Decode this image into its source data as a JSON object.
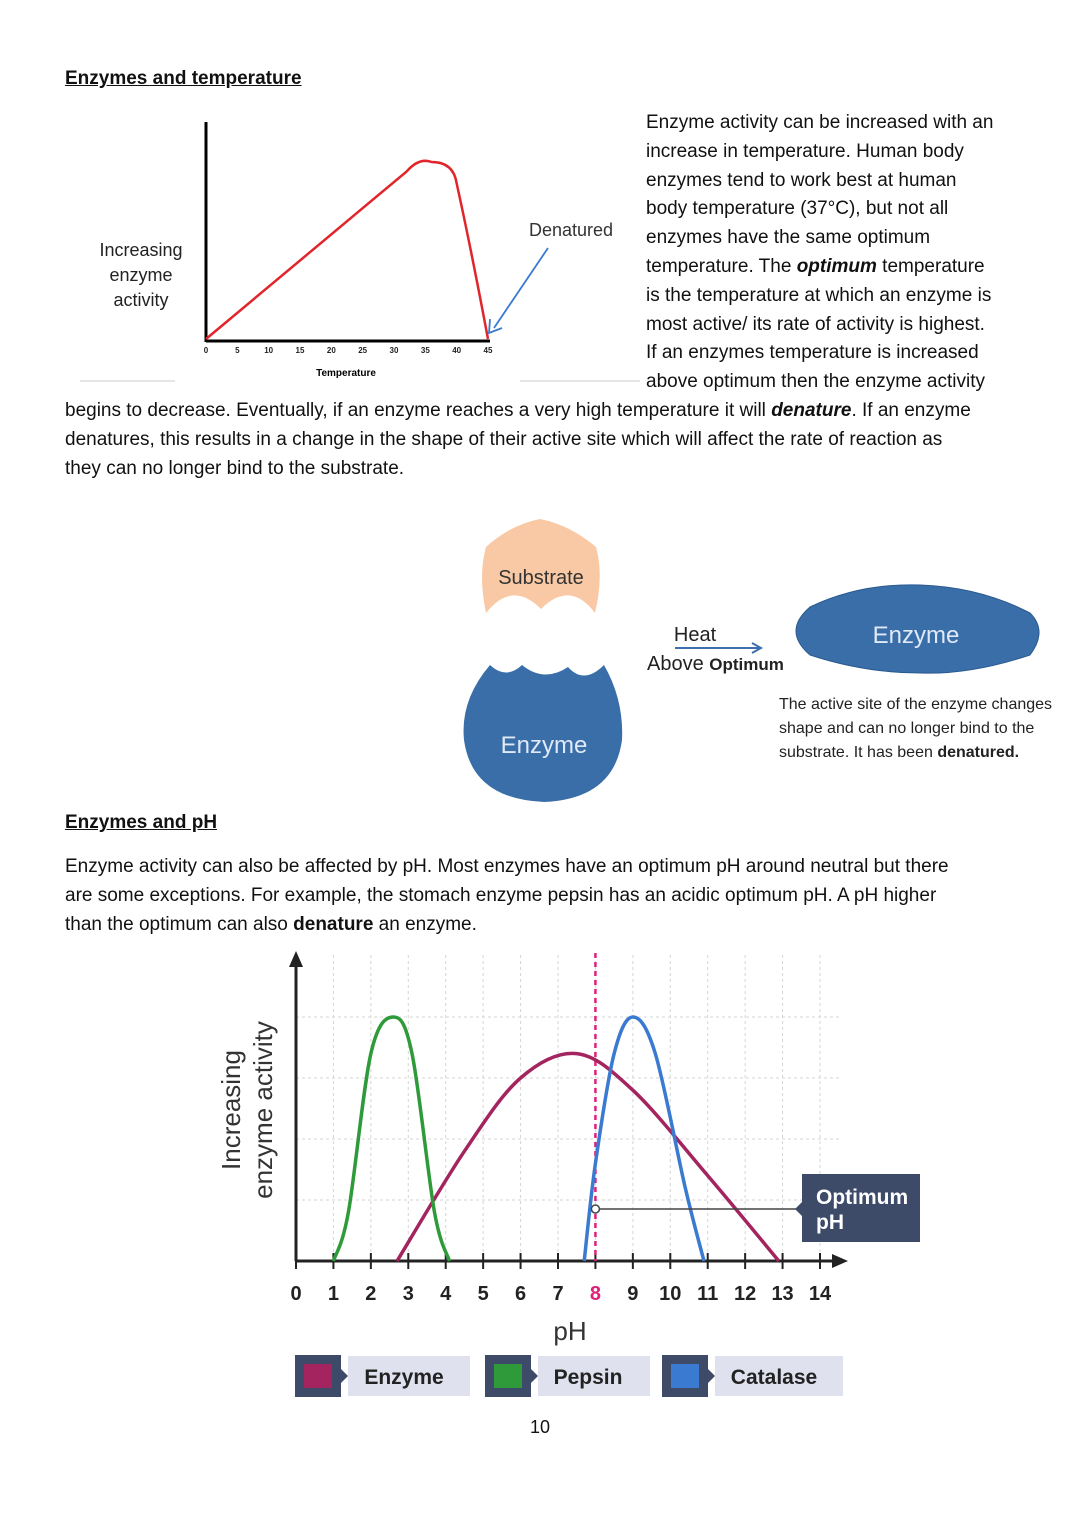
{
  "section1": {
    "heading": "Enzymes and temperature",
    "para_right_lines": [
      "Enzyme activity can be increased with an",
      "increase in temperature. Human body",
      "enzymes tend to work best at human",
      "body temperature (37°C), but not all",
      "enzymes have the same optimum",
      "temperature. The ",
      "optimum",
      " temperature",
      "is the temperature at which an enzyme is",
      "most active/ its rate of activity is highest.",
      "If an enzymes temperature is increased",
      "above optimum then the enzyme activity"
    ],
    "para_full_1a": "begins to decrease. Eventually, if an enzyme reaches a very high temperature it will ",
    "para_full_1b": "denature",
    "para_full_1c": ". If an enzyme",
    "para_full_2": "denatures, this results in a change in the shape of their active site which will affect the rate of reaction as",
    "para_full_3": "they can no longer bind to the substrate."
  },
  "temp_chart": {
    "ylabel_lines": [
      "Increasing",
      "enzyme",
      "activity"
    ],
    "xlabel": "Temperature",
    "ticks": [
      "0",
      "5",
      "10",
      "15",
      "20",
      "25",
      "30",
      "35",
      "40",
      "45"
    ],
    "annotation": "Denatured",
    "curve": [
      [
        0,
        0
      ],
      [
        32,
        70
      ],
      [
        36,
        74
      ],
      [
        40,
        65
      ],
      [
        45,
        0
      ]
    ]
  },
  "denature_diagram": {
    "substrate_label": "Substrate",
    "enzyme_label": "Enzyme",
    "arrow_top": "Heat",
    "arrow_bottom": "Above ",
    "arrow_bottom_bold": "Optimum",
    "enzyme_denatured_label": "Enzyme",
    "caption_1": "The active site of the enzyme changes",
    "caption_2": "shape and can no longer bind to the",
    "caption_3a": "substrate.  It has been ",
    "caption_3b": "denatured.",
    "colors": {
      "enzyme": "#3a6ea8",
      "substrate": "#f8c9a4"
    }
  },
  "section2": {
    "heading": "Enzymes and pH",
    "line1": "Enzyme activity can also be affected by pH. Most enzymes have an optimum pH around neutral but there",
    "line2": "are some exceptions. For example, the stomach enzyme pepsin has an acidic optimum pH. A pH higher",
    "line3a": "than the optimum can also ",
    "line3b": "denature",
    "line3c": " an enzyme."
  },
  "chart_data": {
    "type": "line",
    "title": "",
    "xlabel": "pH",
    "ylabel_lines": [
      "Increasing",
      "enzyme activity"
    ],
    "xlim": [
      0,
      14
    ],
    "xticks": [
      "0",
      "1",
      "2",
      "3",
      "4",
      "5",
      "6",
      "7",
      "8",
      "9",
      "10",
      "11",
      "12",
      "13",
      "14"
    ],
    "highlight_tick": "8",
    "optimum_marker_x": 8,
    "annotation": [
      "Optimum",
      "pH"
    ],
    "series": [
      {
        "name": "Enzyme",
        "color": "#a3245e",
        "points": [
          [
            2.7,
            0
          ],
          [
            4.5,
            45
          ],
          [
            6,
            75
          ],
          [
            7.5,
            85
          ],
          [
            9,
            70
          ],
          [
            11,
            35
          ],
          [
            12.9,
            0
          ]
        ]
      },
      {
        "name": "Pepsin",
        "color": "#2e9a3a",
        "points": [
          [
            1,
            0
          ],
          [
            1.4,
            20
          ],
          [
            2,
            85
          ],
          [
            2.6,
            100
          ],
          [
            3.1,
            85
          ],
          [
            3.7,
            20
          ],
          [
            4.1,
            0
          ]
        ]
      },
      {
        "name": "Catalase",
        "color": "#3a7ad0",
        "points": [
          [
            7.7,
            0
          ],
          [
            8,
            40
          ],
          [
            8.5,
            85
          ],
          [
            9,
            100
          ],
          [
            9.6,
            85
          ],
          [
            10.4,
            30
          ],
          [
            10.9,
            0
          ]
        ]
      }
    ],
    "legend": [
      "Enzyme",
      "Pepsin",
      "Catalase"
    ],
    "grid": true
  },
  "page_number": "10"
}
